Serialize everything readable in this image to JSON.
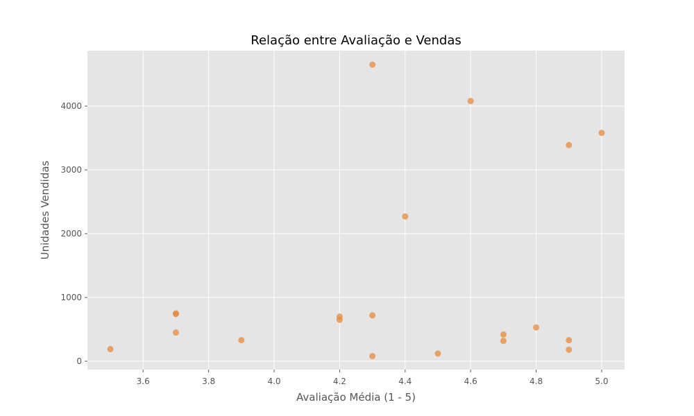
{
  "chart_data": {
    "type": "scatter",
    "title": "Relação entre Avaliação e Vendas",
    "xlabel": "Avaliação Média (1 - 5)",
    "ylabel": "Unidades Vendidas",
    "xlim": [
      3.43,
      5.07
    ],
    "ylim": [
      -130,
      4870
    ],
    "x_ticks": [
      {
        "value": 3.6,
        "label": "3.6"
      },
      {
        "value": 3.8,
        "label": "3.8"
      },
      {
        "value": 4.0,
        "label": "4.0"
      },
      {
        "value": 4.2,
        "label": "4.2"
      },
      {
        "value": 4.4,
        "label": "4.4"
      },
      {
        "value": 4.6,
        "label": "4.6"
      },
      {
        "value": 4.8,
        "label": "4.8"
      },
      {
        "value": 5.0,
        "label": "5.0"
      }
    ],
    "y_ticks": [
      {
        "value": 0,
        "label": "0"
      },
      {
        "value": 1000,
        "label": "1000"
      },
      {
        "value": 2000,
        "label": "2000"
      },
      {
        "value": 3000,
        "label": "3000"
      },
      {
        "value": 4000,
        "label": "4000"
      }
    ],
    "grid": true,
    "colors": {
      "background": "#e5e5e5",
      "grid": "#ffffff",
      "marker": "#e5893c"
    },
    "points": [
      {
        "x": 3.5,
        "y": 190
      },
      {
        "x": 3.7,
        "y": 450
      },
      {
        "x": 3.7,
        "y": 740
      },
      {
        "x": 3.7,
        "y": 750
      },
      {
        "x": 3.9,
        "y": 330
      },
      {
        "x": 4.2,
        "y": 650
      },
      {
        "x": 4.2,
        "y": 700
      },
      {
        "x": 4.3,
        "y": 80
      },
      {
        "x": 4.3,
        "y": 720
      },
      {
        "x": 4.3,
        "y": 4650
      },
      {
        "x": 4.4,
        "y": 2270
      },
      {
        "x": 4.5,
        "y": 120
      },
      {
        "x": 4.6,
        "y": 4080
      },
      {
        "x": 4.7,
        "y": 320
      },
      {
        "x": 4.7,
        "y": 420
      },
      {
        "x": 4.8,
        "y": 530
      },
      {
        "x": 4.9,
        "y": 180
      },
      {
        "x": 4.9,
        "y": 330
      },
      {
        "x": 4.9,
        "y": 3390
      },
      {
        "x": 5.0,
        "y": 3580
      }
    ]
  }
}
